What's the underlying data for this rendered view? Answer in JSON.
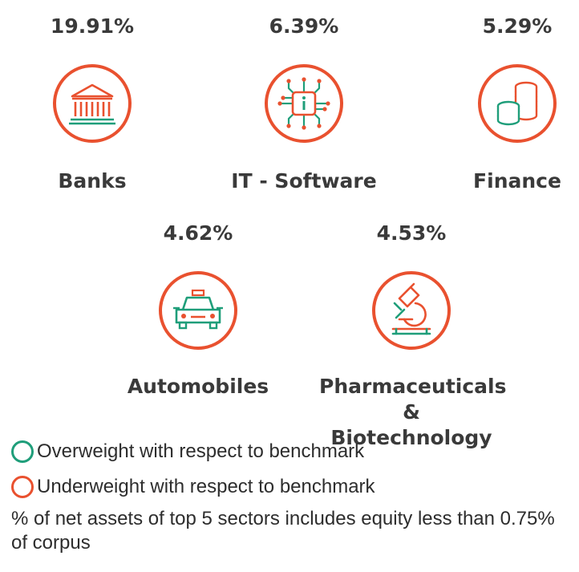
{
  "colors": {
    "underweight": "#e9512f",
    "overweight": "#1f9e7a",
    "text": "#3a3a3a"
  },
  "sectors": [
    {
      "name": "Banks",
      "percent": "19.91%",
      "icon": "bank-icon",
      "weighting": "underweight"
    },
    {
      "name": "IT - Software",
      "percent": "6.39%",
      "icon": "circuit-info-icon",
      "weighting": "underweight"
    },
    {
      "name": "Finance",
      "percent": "5.29%",
      "icon": "coin-stack-icon",
      "weighting": "underweight"
    },
    {
      "name": "Automobiles",
      "percent": "4.62%",
      "icon": "car-icon",
      "weighting": "underweight"
    },
    {
      "name_line1": "Pharmaceuticals",
      "name_line2": "& Biotechnology",
      "percent": "4.53%",
      "icon": "microscope-icon",
      "weighting": "underweight"
    }
  ],
  "legend": {
    "overweight": "Overweight with respect to benchmark",
    "underweight": "Underweight with respect to benchmark"
  },
  "footnote": "% of net assets of top 5 sectors includes equity less than 0.75% of corpus"
}
